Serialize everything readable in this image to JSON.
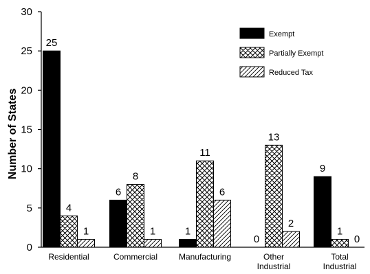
{
  "chart_data": {
    "type": "bar",
    "categories": [
      [
        "Residential"
      ],
      [
        "Commercial"
      ],
      [
        "Manufacturing"
      ],
      [
        "Other",
        "Industrial"
      ],
      [
        "Total",
        "Industrial"
      ]
    ],
    "series": [
      {
        "name": "Exempt",
        "pattern": "solid",
        "values": [
          25,
          6,
          1,
          0,
          9
        ]
      },
      {
        "name": "Partially Exempt",
        "pattern": "crosshatch",
        "values": [
          4,
          8,
          11,
          13,
          1
        ]
      },
      {
        "name": "Reduced Tax",
        "pattern": "diagonal",
        "values": [
          1,
          1,
          6,
          2,
          0
        ]
      }
    ],
    "title": "",
    "xlabel": "",
    "ylabel": "Number of States",
    "ylim": [
      0,
      30
    ],
    "yticks": [
      0,
      5,
      10,
      15,
      20,
      25,
      30
    ],
    "grid": false,
    "legend": "top-right",
    "data_labels": true,
    "colors": {
      "bar_fill": "#000000",
      "background": "#ffffff",
      "stroke": "#000000"
    }
  }
}
